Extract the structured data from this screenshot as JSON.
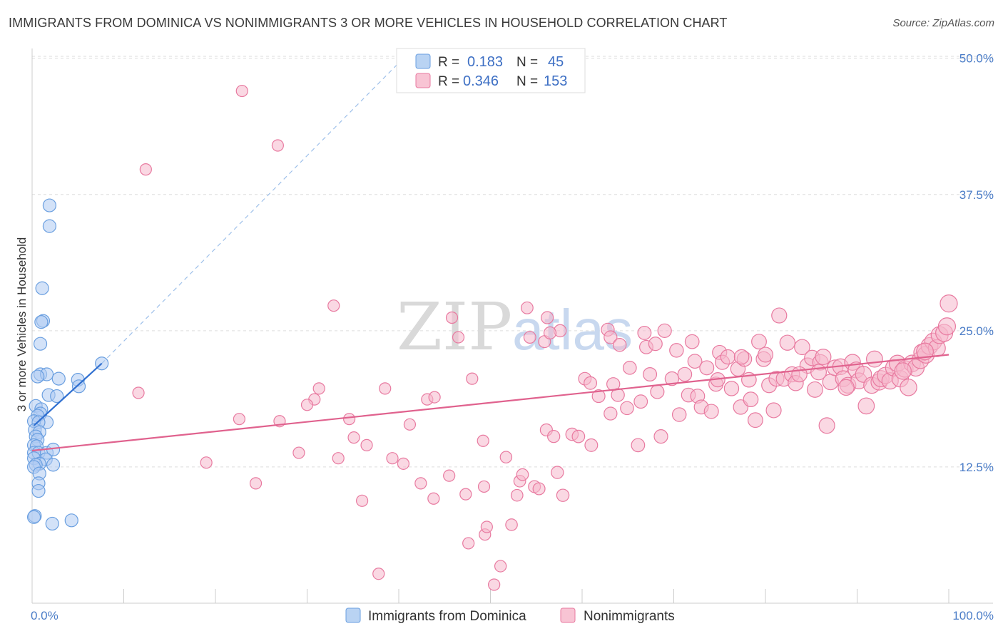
{
  "header": {
    "title": "IMMIGRANTS FROM DOMINICA VS NONIMMIGRANTS 3 OR MORE VEHICLES IN HOUSEHOLD CORRELATION CHART",
    "source": "Source: ZipAtlas.com"
  },
  "watermark": {
    "zip": "ZIP",
    "atlas": "atlas"
  },
  "colors": {
    "blue": "#6a9fe0",
    "blue_fill": "#aecbf2",
    "blue_line": "#2f6fd0",
    "pink": "#e87aa0",
    "pink_fill": "#f6b8cc",
    "pink_line": "#e0628e",
    "tick": "#4a7cc7",
    "grid": "#dddddd"
  },
  "legend": {
    "rows": [
      {
        "r_label": "R =",
        "r_value": "0.183",
        "n_label": "N =",
        "n_value": "45"
      },
      {
        "r_label": "R =",
        "r_value": "0.346",
        "n_label": "N =",
        "n_value": "153"
      }
    ]
  },
  "chart_data": {
    "type": "scatter",
    "title": "IMMIGRANTS FROM DOMINICA VS NONIMMIGRANTS 3 OR MORE VEHICLES IN HOUSEHOLD CORRELATION CHART",
    "ylabel": "3 or more Vehicles in Household",
    "xlim": [
      0,
      100
    ],
    "ylim": [
      0,
      52
    ],
    "x_tick_labels": [
      "0.0%",
      "100.0%"
    ],
    "y_ticks": [
      12.5,
      25.0,
      37.5,
      50.0
    ],
    "y_tick_labels": [
      "12.5%",
      "25.0%",
      "37.5%",
      "50.0%"
    ],
    "grid": true,
    "legend_placement": "bottom",
    "series": [
      {
        "name": "Immigrants from Dominica",
        "r": 0.183,
        "n": 45,
        "trend": {
          "x0": 0.2,
          "y0": 16.3,
          "x1": 7.6,
          "y1": 22.0
        },
        "trend_dashed": {
          "x0": 7.6,
          "y0": 22.0,
          "x1": 40.5,
          "y1": 50.0
        },
        "points": [
          [
            1.9,
            36.5
          ],
          [
            1.9,
            34.6
          ],
          [
            1.1,
            28.9
          ],
          [
            1.2,
            25.9
          ],
          [
            1.0,
            25.8
          ],
          [
            0.9,
            23.8
          ],
          [
            0.9,
            21.0
          ],
          [
            1.6,
            21.0
          ],
          [
            0.6,
            20.8
          ],
          [
            2.9,
            20.6
          ],
          [
            5.0,
            20.5
          ],
          [
            5.1,
            19.9
          ],
          [
            1.8,
            19.1
          ],
          [
            2.7,
            19.0
          ],
          [
            7.6,
            22.0
          ],
          [
            0.4,
            18.1
          ],
          [
            1.0,
            17.8
          ],
          [
            0.9,
            17.4
          ],
          [
            0.6,
            17.2
          ],
          [
            0.2,
            16.7
          ],
          [
            1.6,
            16.6
          ],
          [
            0.7,
            16.6
          ],
          [
            0.3,
            15.9
          ],
          [
            0.8,
            15.7
          ],
          [
            0.4,
            15.3
          ],
          [
            0.6,
            15.0
          ],
          [
            0.2,
            14.5
          ],
          [
            0.5,
            14.4
          ],
          [
            0.2,
            13.8
          ],
          [
            0.7,
            13.8
          ],
          [
            1.6,
            13.8
          ],
          [
            2.3,
            14.1
          ],
          [
            1.5,
            13.2
          ],
          [
            0.2,
            13.3
          ],
          [
            0.8,
            12.8
          ],
          [
            2.3,
            12.7
          ],
          [
            0.4,
            12.7
          ],
          [
            0.2,
            12.5
          ],
          [
            0.8,
            11.9
          ],
          [
            0.7,
            11.0
          ],
          [
            0.7,
            10.3
          ],
          [
            0.3,
            8.0
          ],
          [
            2.2,
            7.3
          ],
          [
            4.3,
            7.6
          ],
          [
            0.2,
            7.9
          ]
        ]
      },
      {
        "name": "Nonimmigrants",
        "r": 0.346,
        "n": 153,
        "trend": {
          "x0": 0.0,
          "y0": 14.0,
          "x1": 100.0,
          "y1": 22.8
        },
        "points": [
          [
            22.9,
            47.0
          ],
          [
            12.4,
            39.8
          ],
          [
            11.6,
            19.3
          ],
          [
            26.8,
            42.0
          ],
          [
            27.0,
            16.7
          ],
          [
            22.6,
            16.9
          ],
          [
            19.0,
            12.9
          ],
          [
            24.4,
            11.0
          ],
          [
            29.1,
            13.8
          ],
          [
            30.8,
            18.7
          ],
          [
            31.3,
            19.7
          ],
          [
            30.0,
            18.2
          ],
          [
            32.9,
            27.3
          ],
          [
            33.4,
            13.3
          ],
          [
            34.6,
            16.9
          ],
          [
            35.1,
            15.2
          ],
          [
            36.0,
            9.4
          ],
          [
            36.5,
            14.5
          ],
          [
            37.8,
            2.7
          ],
          [
            38.5,
            19.7
          ],
          [
            39.3,
            13.3
          ],
          [
            40.5,
            12.8
          ],
          [
            41.2,
            16.4
          ],
          [
            42.4,
            11.0
          ],
          [
            43.1,
            18.7
          ],
          [
            43.8,
            9.6
          ],
          [
            43.9,
            18.9
          ],
          [
            45.5,
            11.7
          ],
          [
            45.8,
            26.2
          ],
          [
            46.5,
            24.4
          ],
          [
            47.3,
            10.0
          ],
          [
            47.6,
            5.5
          ],
          [
            48.0,
            20.6
          ],
          [
            49.2,
            14.9
          ],
          [
            49.3,
            10.7
          ],
          [
            49.4,
            6.3
          ],
          [
            49.6,
            7.0
          ],
          [
            50.4,
            1.7
          ],
          [
            51.1,
            3.4
          ],
          [
            51.7,
            13.4
          ],
          [
            52.3,
            7.2
          ],
          [
            52.9,
            9.9
          ],
          [
            53.2,
            11.2
          ],
          [
            53.5,
            11.8
          ],
          [
            54.0,
            27.1
          ],
          [
            54.3,
            24.4
          ],
          [
            54.8,
            10.7
          ],
          [
            55.3,
            10.5
          ],
          [
            55.9,
            24.0
          ],
          [
            56.1,
            15.9
          ],
          [
            56.2,
            26.2
          ],
          [
            56.9,
            15.3
          ],
          [
            57.3,
            12.0
          ],
          [
            57.6,
            25.0
          ],
          [
            57.9,
            9.9
          ],
          [
            58.9,
            15.5
          ],
          [
            59.6,
            15.3
          ],
          [
            60.3,
            20.6
          ],
          [
            61.0,
            14.5
          ],
          [
            61.8,
            19.0
          ],
          [
            62.8,
            25.1
          ],
          [
            63.1,
            17.4
          ],
          [
            63.4,
            20.1
          ],
          [
            63.9,
            19.1
          ],
          [
            64.9,
            17.9
          ],
          [
            65.2,
            21.6
          ],
          [
            66.1,
            14.5
          ],
          [
            66.4,
            18.5
          ],
          [
            67.0,
            23.5
          ],
          [
            67.4,
            21.0
          ],
          [
            68.2,
            19.4
          ],
          [
            68.6,
            15.3
          ],
          [
            69.0,
            25.0
          ],
          [
            69.8,
            20.6
          ],
          [
            70.3,
            23.2
          ],
          [
            70.6,
            17.3
          ],
          [
            71.2,
            21.0
          ],
          [
            71.6,
            19.1
          ],
          [
            72.0,
            24.0
          ],
          [
            72.3,
            22.2
          ],
          [
            72.6,
            19.0
          ],
          [
            73.0,
            18.0
          ],
          [
            73.6,
            21.6
          ],
          [
            74.1,
            17.6
          ],
          [
            74.6,
            20.1
          ],
          [
            75.0,
            23.0
          ],
          [
            75.3,
            22.1
          ],
          [
            75.9,
            22.6
          ],
          [
            76.3,
            19.7
          ],
          [
            77.0,
            21.5
          ],
          [
            77.3,
            18.0
          ],
          [
            77.7,
            22.4
          ],
          [
            78.2,
            20.5
          ],
          [
            78.4,
            18.7
          ],
          [
            78.9,
            16.8
          ],
          [
            79.3,
            24.0
          ],
          [
            79.8,
            22.4
          ],
          [
            80.4,
            20.0
          ],
          [
            80.9,
            17.7
          ],
          [
            81.2,
            20.6
          ],
          [
            81.5,
            26.4
          ],
          [
            82.0,
            20.6
          ],
          [
            82.4,
            23.9
          ],
          [
            82.9,
            21.0
          ],
          [
            83.3,
            20.2
          ],
          [
            84.0,
            23.5
          ],
          [
            84.6,
            21.8
          ],
          [
            85.1,
            22.5
          ],
          [
            85.4,
            19.6
          ],
          [
            86.0,
            22.1
          ],
          [
            86.7,
            16.3
          ],
          [
            87.1,
            20.3
          ],
          [
            87.6,
            21.6
          ],
          [
            88.2,
            21.7
          ],
          [
            88.5,
            20.6
          ],
          [
            89.0,
            20.0
          ],
          [
            89.5,
            22.1
          ],
          [
            89.9,
            21.4
          ],
          [
            90.2,
            20.4
          ],
          [
            90.7,
            21.0
          ],
          [
            91.0,
            18.1
          ],
          [
            91.6,
            20.0
          ],
          [
            91.9,
            22.4
          ],
          [
            92.4,
            20.3
          ],
          [
            92.6,
            20.6
          ],
          [
            93.1,
            20.9
          ],
          [
            93.6,
            20.4
          ],
          [
            94.0,
            21.6
          ],
          [
            94.4,
            22.0
          ],
          [
            94.7,
            20.6
          ],
          [
            95.2,
            21.5
          ],
          [
            95.6,
            19.8
          ],
          [
            96.0,
            22.0
          ],
          [
            96.4,
            21.6
          ],
          [
            96.9,
            22.3
          ],
          [
            97.1,
            23.0
          ],
          [
            97.5,
            22.8
          ],
          [
            97.9,
            23.6
          ],
          [
            98.3,
            24.0
          ],
          [
            98.7,
            23.4
          ],
          [
            99.0,
            24.6
          ],
          [
            99.5,
            24.8
          ],
          [
            99.8,
            25.4
          ],
          [
            100.0,
            27.5
          ],
          [
            83.7,
            21.0
          ],
          [
            85.8,
            21.2
          ],
          [
            88.8,
            19.8
          ],
          [
            95.0,
            21.3
          ],
          [
            97.4,
            23.1
          ],
          [
            86.3,
            22.6
          ],
          [
            80.0,
            22.8
          ],
          [
            77.4,
            22.6
          ],
          [
            63.1,
            24.4
          ],
          [
            68.0,
            23.8
          ],
          [
            64.1,
            23.7
          ],
          [
            74.8,
            20.5
          ],
          [
            66.8,
            24.8
          ],
          [
            60.9,
            20.2
          ],
          [
            56.5,
            24.8
          ]
        ]
      }
    ]
  }
}
